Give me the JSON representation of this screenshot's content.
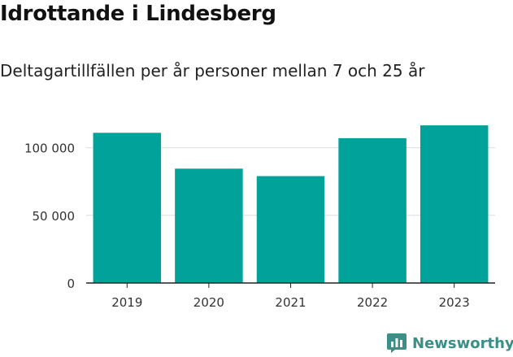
{
  "header": {
    "title": "Idrottande i Lindesberg",
    "subtitle": "Deltagartillfällen per år personer mellan 7 och 25 år"
  },
  "chart_data": {
    "type": "bar",
    "categories": [
      "2019",
      "2020",
      "2021",
      "2022",
      "2023"
    ],
    "values": [
      111000,
      84500,
      79000,
      107000,
      116500
    ],
    "ylim": [
      0,
      125000
    ],
    "yticks": [
      0,
      50000,
      100000
    ],
    "ytick_labels": [
      "0",
      "50 000",
      "100 000"
    ],
    "grid": true,
    "legend": "none",
    "bar_color": "#00a29a",
    "grid_color": "#dddddd",
    "axis_color": "#222222"
  },
  "brand": {
    "name": "Newsworthy",
    "color": "#3a8f86",
    "icon": "bar-chart-logo-icon"
  }
}
